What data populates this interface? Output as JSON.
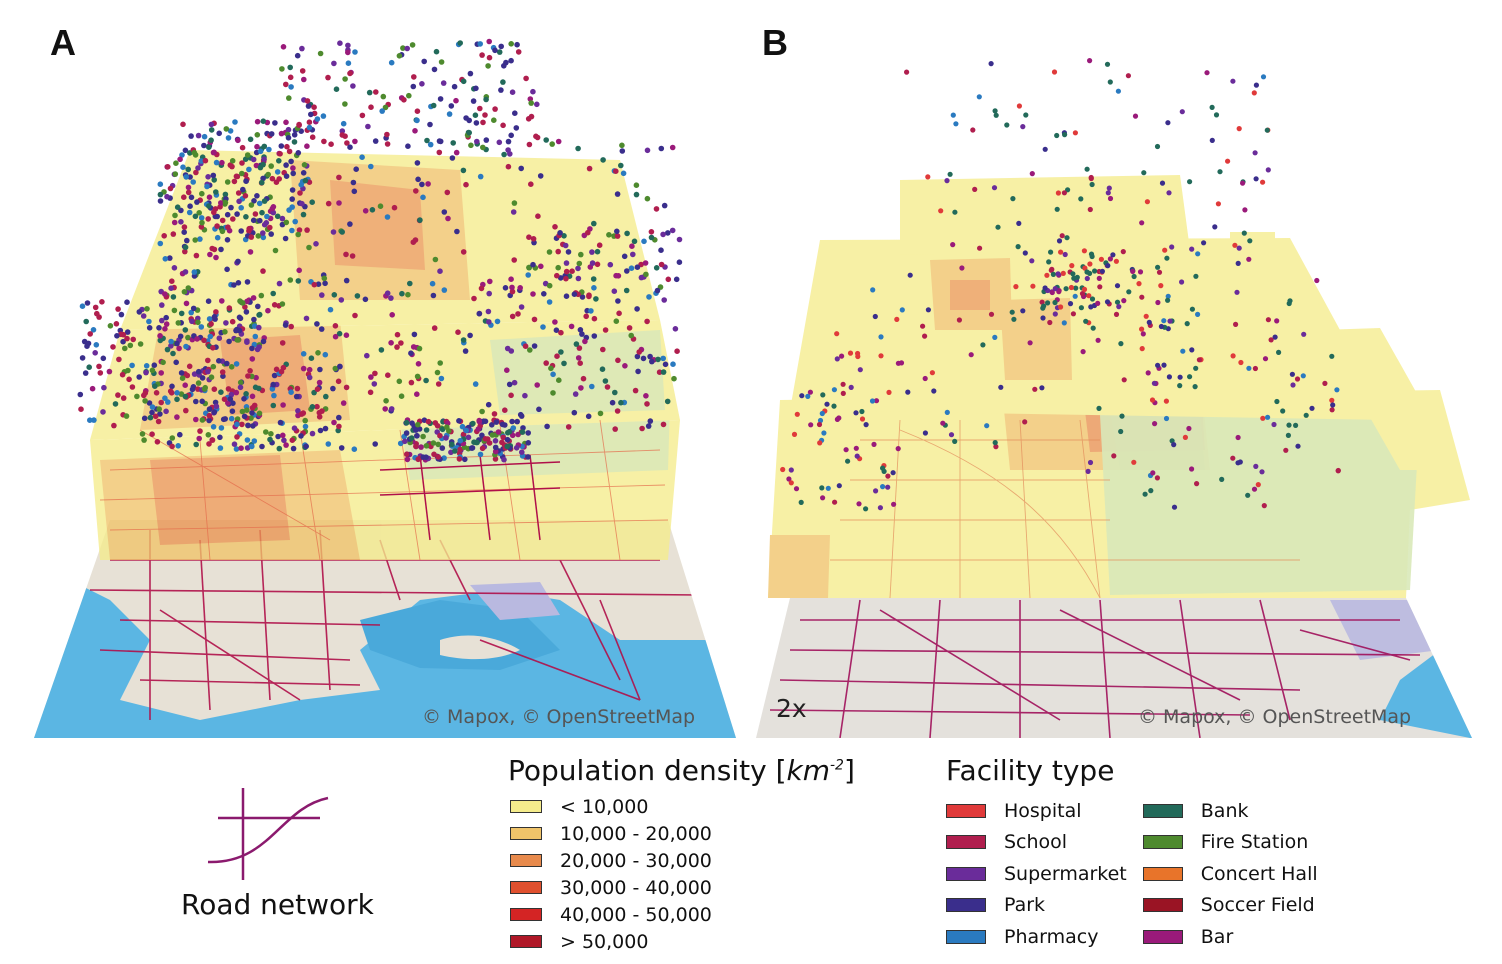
{
  "panels": {
    "a": {
      "letter": "A",
      "credit": "© Mapox, © OpenStreetMap"
    },
    "b": {
      "letter": "B",
      "credit": "© Mapox, © OpenStreetMap",
      "zoom_label": "2x"
    }
  },
  "road_legend": {
    "label": "Road network",
    "color": "#8b1a6e"
  },
  "density_legend": {
    "title": "Population density [",
    "unit": "km",
    "unit_exponent": "-2",
    "title_close": "]",
    "items": [
      {
        "label": "< 10,000",
        "color": "#f5ec8c"
      },
      {
        "label": "10,000 - 20,000",
        "color": "#f0c46a"
      },
      {
        "label": "20,000 - 30,000",
        "color": "#e88a4c"
      },
      {
        "label": "30,000 - 40,000",
        "color": "#e0502e"
      },
      {
        "label": "40,000 - 50,000",
        "color": "#d42424"
      },
      {
        "label": "> 50,000",
        "color": "#b01828"
      }
    ]
  },
  "facility_legend": {
    "title": "Facility type",
    "items": [
      {
        "label": "Hospital",
        "color": "#e03a3a"
      },
      {
        "label": "School",
        "color": "#b01e4e"
      },
      {
        "label": "Supermarket",
        "color": "#6a2c9a"
      },
      {
        "label": "Park",
        "color": "#3a2e8c"
      },
      {
        "label": "Pharmacy",
        "color": "#2a7ac0"
      },
      {
        "label": "Bank",
        "color": "#226a5a"
      },
      {
        "label": "Fire Station",
        "color": "#4e8a2e"
      },
      {
        "label": "Concert Hall",
        "color": "#e8742a"
      },
      {
        "label": "Soccer Field",
        "color": "#9a1424"
      },
      {
        "label": "Bar",
        "color": "#9a1a7a"
      }
    ]
  },
  "map_colors": {
    "water": "#5bb6e3",
    "land": "#e7e1d6",
    "road": "#b0104a"
  }
}
